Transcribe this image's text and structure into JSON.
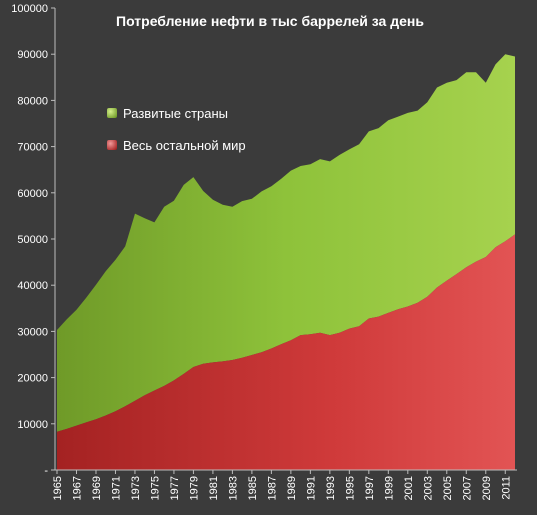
{
  "chart_data": {
    "type": "area",
    "stacked": true,
    "title": "Потребление нефти в тыс баррелей за день",
    "xlabel": "",
    "ylabel": "",
    "ylim": [
      0,
      100000
    ],
    "yticks": [
      "-",
      "10000",
      "20000",
      "30000",
      "40000",
      "50000",
      "60000",
      "70000",
      "80000",
      "90000",
      "100000"
    ],
    "xticks": [
      "1965",
      "1967",
      "1969",
      "1971",
      "1973",
      "1975",
      "1977",
      "1979",
      "1981",
      "1983",
      "1985",
      "1987",
      "1989",
      "1991",
      "1993",
      "1995",
      "1997",
      "1999",
      "2001",
      "2003",
      "2005",
      "2007",
      "2009",
      "2011"
    ],
    "grid": false,
    "legend_position": "upper-left inside plot",
    "x": [
      1965,
      1966,
      1967,
      1968,
      1969,
      1970,
      1971,
      1972,
      1973,
      1974,
      1975,
      1976,
      1977,
      1978,
      1979,
      1980,
      1981,
      1982,
      1983,
      1984,
      1985,
      1986,
      1987,
      1988,
      1989,
      1990,
      1991,
      1992,
      1993,
      1994,
      1995,
      1996,
      1997,
      1998,
      1999,
      2000,
      2001,
      2002,
      2003,
      2004,
      2005,
      2006,
      2007,
      2008,
      2009,
      2010,
      2011,
      2012
    ],
    "series": [
      {
        "name": "Весь остальной мир",
        "color": "#c83030",
        "values": [
          8300,
          8900,
          9600,
          10300,
          11000,
          11800,
          12700,
          13800,
          15000,
          16200,
          17200,
          18200,
          19400,
          20800,
          22300,
          23000,
          23300,
          23500,
          23800,
          24300,
          24900,
          25500,
          26300,
          27200,
          28100,
          29200,
          29400,
          29700,
          29200,
          29700,
          30600,
          31100,
          32800,
          33200,
          34000,
          34800,
          35400,
          36200,
          37500,
          39500,
          41000,
          42400,
          43900,
          45100,
          46100,
          48200,
          49500,
          51000
        ]
      },
      {
        "name": "Развитые страны",
        "color": "#8ebd3c",
        "values": [
          22000,
          23700,
          25100,
          27000,
          29100,
          31200,
          32800,
          34600,
          40500,
          38300,
          36400,
          38800,
          38900,
          40900,
          41100,
          37400,
          35200,
          33900,
          33200,
          33900,
          33800,
          34800,
          35100,
          35800,
          36700,
          36600,
          36800,
          37600,
          37600,
          38500,
          38800,
          39400,
          40500,
          40800,
          41700,
          41700,
          41900,
          41600,
          42100,
          43300,
          42800,
          42000,
          42200,
          41000,
          37700,
          39600,
          40500,
          38500
        ]
      }
    ]
  }
}
